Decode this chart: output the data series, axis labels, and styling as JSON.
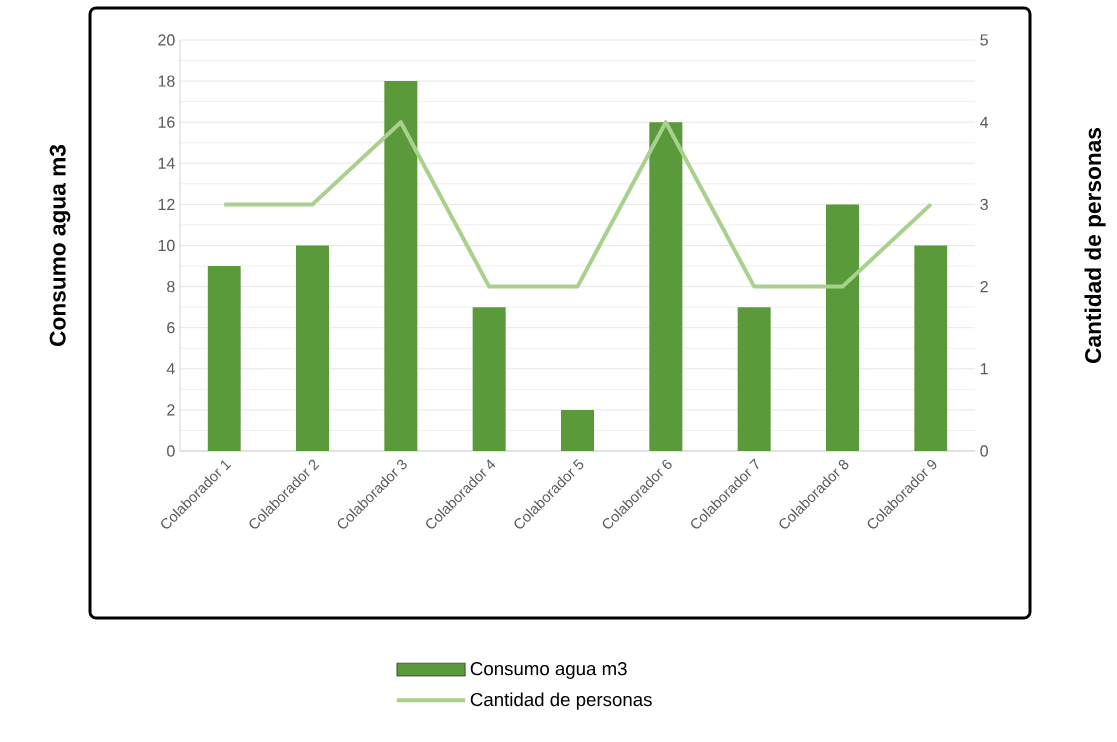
{
  "chart_data": {
    "type": "bar",
    "categories": [
      "Colaborador 1",
      "Colaborador 2",
      "Colaborador 3",
      "Colaborador 4",
      "Colaborador 5",
      "Colaborador 6",
      "Colaborador 7",
      "Colaborador 8",
      "Colaborador 9"
    ],
    "series": [
      {
        "name": "Consumo agua m3",
        "color": "#5b9a3a",
        "values": [
          9,
          10,
          18,
          7,
          2,
          16,
          7,
          12,
          10
        ]
      },
      {
        "name": "Cantidad de personas",
        "type": "line",
        "axis": "y2",
        "color": "#a9d18e",
        "values": [
          3,
          3,
          4,
          2,
          2,
          4,
          2,
          2,
          3
        ]
      }
    ],
    "ylabel": "Consumo agua m3",
    "y2label": "Cantidad de personas",
    "ylim": [
      0,
      20
    ],
    "yticks": [
      0,
      2,
      4,
      6,
      8,
      10,
      12,
      14,
      16,
      18,
      20
    ],
    "y2lim": [
      0,
      5
    ],
    "y2ticks": [
      0,
      1,
      2,
      3,
      4,
      5
    ],
    "grid": "y",
    "legend": "bottom"
  }
}
